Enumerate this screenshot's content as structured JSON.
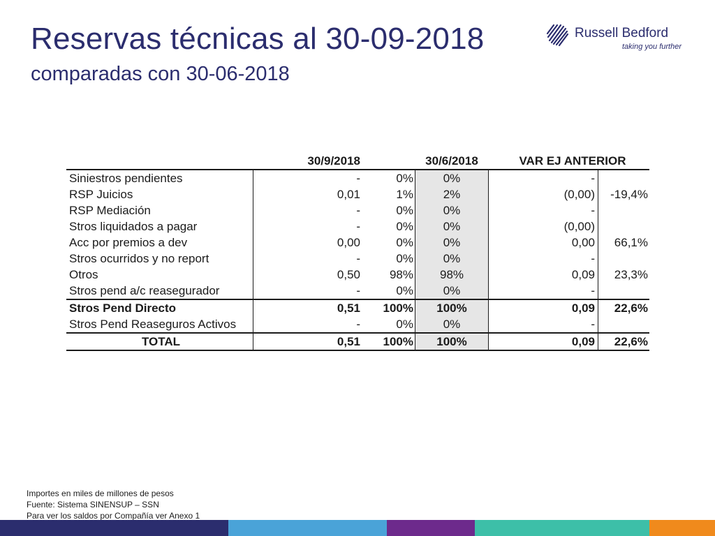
{
  "title": "Reservas técnicas al 30-09-2018",
  "subtitle": "comparadas con 30-06-2018",
  "logo": {
    "brand": "Russell Bedford",
    "tagline": "taking you further"
  },
  "table": {
    "headers": {
      "date1": "30/9/2018",
      "date2": "30/6/2018",
      "var": "VAR EJ ANTERIOR"
    },
    "rows": [
      {
        "label": "Siniestros pendientes",
        "val": "-",
        "pct1": "0%",
        "pct2": "0%",
        "var": "-",
        "varp": ""
      },
      {
        "label": "RSP Juicios",
        "val": "0,01",
        "pct1": "1%",
        "pct2": "2%",
        "var": "(0,00)",
        "varp": "-19,4%"
      },
      {
        "label": "RSP Mediación",
        "val": "-",
        "pct1": "0%",
        "pct2": "0%",
        "var": "-",
        "varp": ""
      },
      {
        "label": "Stros liquidados a pagar",
        "val": "-",
        "pct1": "0%",
        "pct2": "0%",
        "var": "(0,00)",
        "varp": ""
      },
      {
        "label": "Acc por premios a dev",
        "val": "0,00",
        "pct1": "0%",
        "pct2": "0%",
        "var": "0,00",
        "varp": "66,1%"
      },
      {
        "label": "Stros ocurridos y no report",
        "val": "-",
        "pct1": "0%",
        "pct2": "0%",
        "var": "-",
        "varp": ""
      },
      {
        "label": "Otros",
        "val": "0,50",
        "pct1": "98%",
        "pct2": "98%",
        "var": "0,09",
        "varp": "23,3%"
      },
      {
        "label": "Stros pend a/c reasegurador",
        "val": "-",
        "pct1": "0%",
        "pct2": "0%",
        "var": "-",
        "varp": ""
      },
      {
        "label": "Stros Pend Directo",
        "val": "0,51",
        "pct1": "100%",
        "pct2": "100%",
        "var": "0,09",
        "varp": "22,6%"
      },
      {
        "label": "Stros Pend Reaseguros Activos",
        "val": "-",
        "pct1": "0%",
        "pct2": "0%",
        "var": "-",
        "varp": ""
      },
      {
        "label": "TOTAL",
        "val": "0,51",
        "pct1": "100%",
        "pct2": "100%",
        "var": "0,09",
        "varp": "22,6%"
      }
    ]
  },
  "notes": [
    "Importes en miles de millones de pesos",
    "Fuente: Sistema SINENSUP – SSN",
    "Para ver los saldos por Compañía ver Anexo 1"
  ],
  "colors": {
    "title": "#2b2d6e",
    "shade": "#e6e6e6",
    "bar": [
      "#2b2d6e",
      "#4aa3d8",
      "#6d2a8c",
      "#3dbfa8",
      "#f08a1c"
    ]
  }
}
